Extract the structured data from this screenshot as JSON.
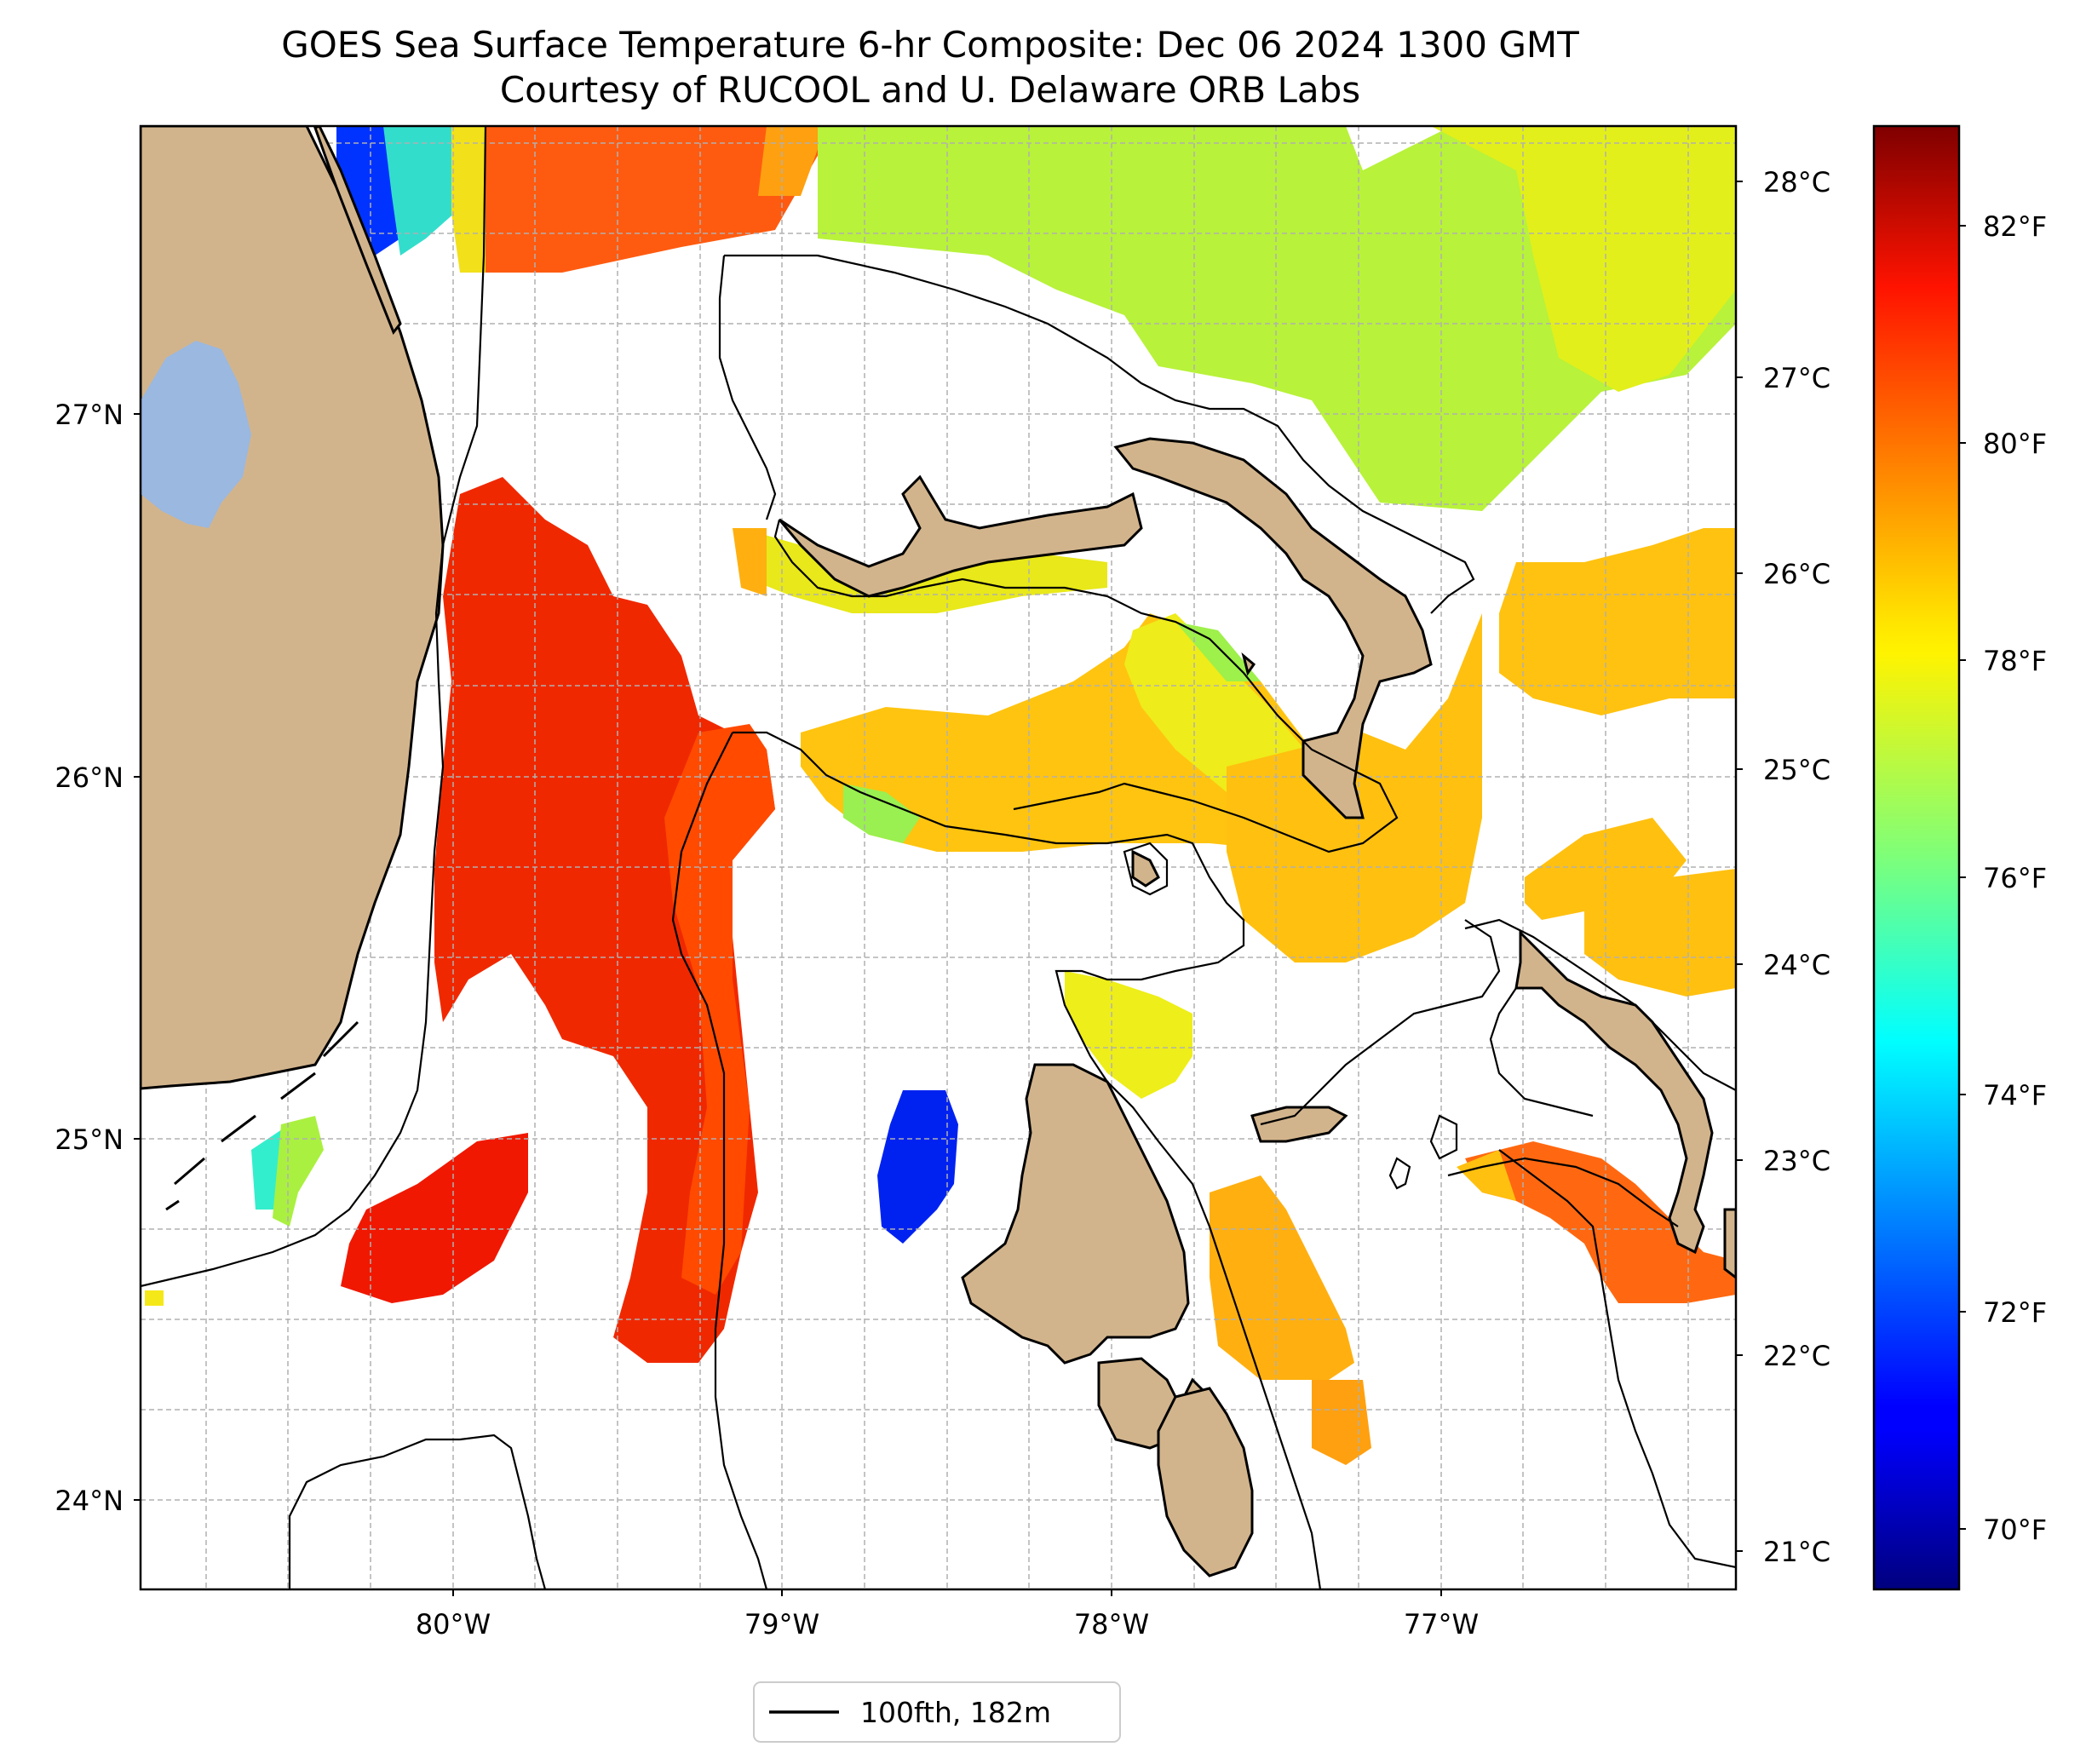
{
  "title": {
    "line1": "GOES Sea Surface Temperature 6-hr Composite: Dec 06 2024 1300 GMT",
    "line2": "Courtesy of RUCOOL and U. Delaware ORB Labs"
  },
  "map": {
    "lon_range": [
      -80.95,
      -76.1
    ],
    "lat_range": [
      23.75,
      27.8
    ],
    "lon_ticks": [
      {
        "value": -80,
        "label": "80°W"
      },
      {
        "value": -79,
        "label": "79°W"
      },
      {
        "value": -78,
        "label": "78°W"
      },
      {
        "value": -77,
        "label": "77°W"
      }
    ],
    "lat_ticks": [
      {
        "value": 24,
        "label": "24°N"
      },
      {
        "value": 25,
        "label": "25°N"
      },
      {
        "value": 26,
        "label": "26°N"
      },
      {
        "value": 27,
        "label": "27°N"
      }
    ],
    "grid": "dashed, 0.25° spacing",
    "colors": {
      "land": "#d2b48c",
      "lake": "#9ab8e0",
      "contour": "#000000"
    }
  },
  "celsius_axis": {
    "ticks": [
      {
        "value": 21,
        "label": "21°C"
      },
      {
        "value": 22,
        "label": "22°C"
      },
      {
        "value": 23,
        "label": "23°C"
      },
      {
        "value": 24,
        "label": "24°C"
      },
      {
        "value": 25,
        "label": "25°C"
      },
      {
        "value": 26,
        "label": "26°C"
      },
      {
        "value": 27,
        "label": "27°C"
      },
      {
        "value": 28,
        "label": "28°C"
      }
    ]
  },
  "colorbar": {
    "range_f": [
      69.0,
      83.0
    ],
    "colormap": "jet",
    "ticks": [
      {
        "value": 70,
        "label": "70°F"
      },
      {
        "value": 72,
        "label": "72°F"
      },
      {
        "value": 74,
        "label": "74°F"
      },
      {
        "value": 76,
        "label": "76°F"
      },
      {
        "value": 78,
        "label": "78°F"
      },
      {
        "value": 80,
        "label": "80°F"
      },
      {
        "value": 82,
        "label": "82°F"
      }
    ]
  },
  "legend": {
    "label": "100fth, 182m"
  }
}
